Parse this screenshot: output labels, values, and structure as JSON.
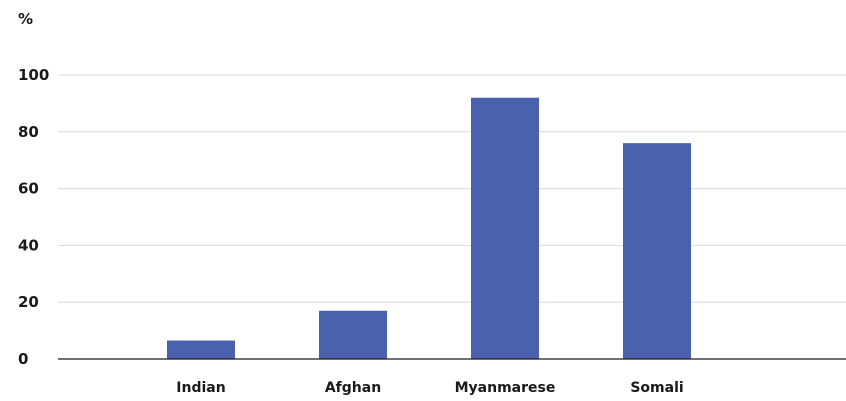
{
  "chart_data": {
    "type": "bar",
    "ylabel": "%",
    "categories": [
      "Indian",
      "Afghan",
      "Myanmarese",
      "Somali"
    ],
    "values": [
      6.5,
      17,
      92,
      76
    ],
    "ylim": [
      0,
      100
    ],
    "yticks": [
      "0",
      "20",
      "40",
      "60",
      "80",
      "100"
    ],
    "grid": true,
    "bar_color": "#4a62ae"
  }
}
